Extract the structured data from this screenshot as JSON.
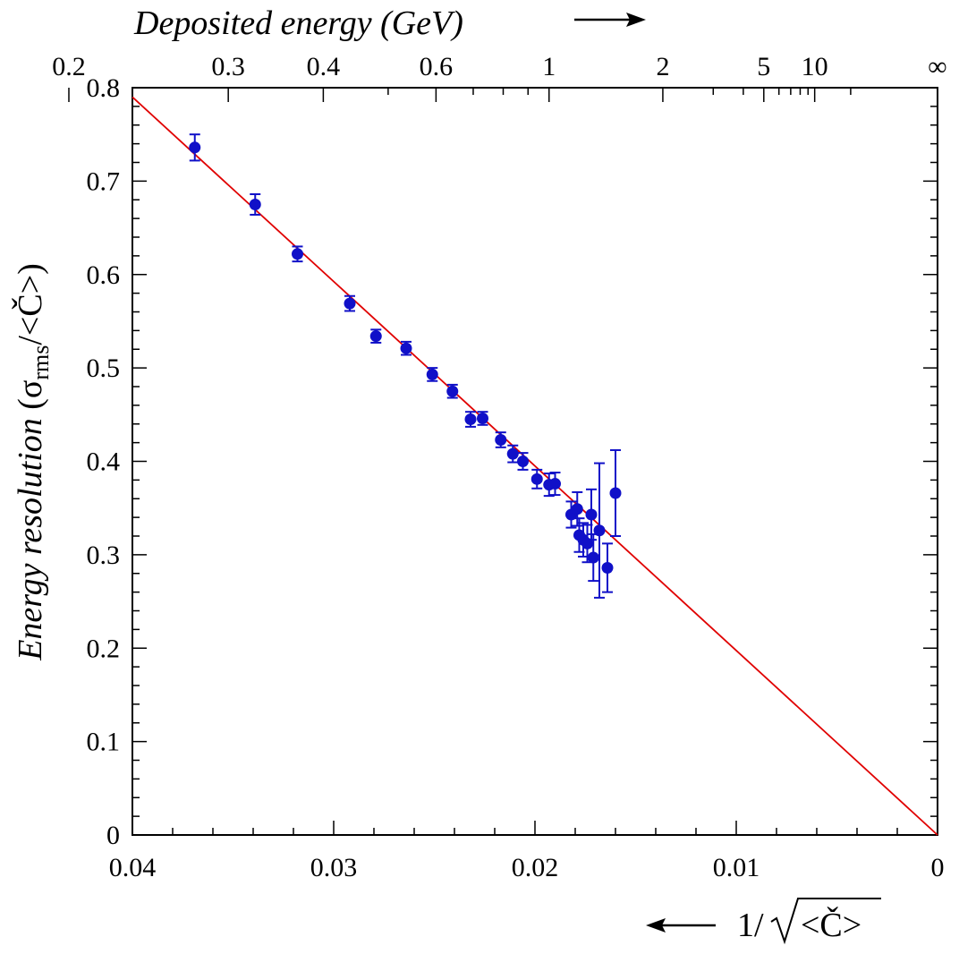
{
  "chart_data": {
    "type": "scatter",
    "xlabel": "1/√<Č>",
    "ylabel": "Energy resolution  (σrms/<Č>)",
    "ylabel_parts": {
      "italic": "Energy resolution",
      "sigma": "σ",
      "sub": "rms",
      "tail": "/<Č>)",
      "open": "("
    },
    "xlabel_parts": {
      "prefix": "1/",
      "radicand": "<Č>"
    },
    "top_axis_title": "Deposited energy (GeV)",
    "x_reversed": true,
    "xlim": [
      0.04,
      0
    ],
    "ylim": [
      0,
      0.8
    ],
    "x_ticks": [
      "0.04",
      "0.03",
      "0.02",
      "0.01",
      "0"
    ],
    "y_ticks": [
      "0",
      "0.1",
      "0.2",
      "0.3",
      "0.4",
      "0.5",
      "0.6",
      "0.7",
      "0.8"
    ],
    "top_ticks": [
      {
        "label": "0.2",
        "energy": 0.2
      },
      {
        "label": "0.3",
        "energy": 0.3
      },
      {
        "label": "0.4",
        "energy": 0.4
      },
      {
        "label": "0.6",
        "energy": 0.6
      },
      {
        "label": "1",
        "energy": 1
      },
      {
        "label": "2",
        "energy": 2
      },
      {
        "label": "5",
        "energy": 5
      },
      {
        "label": "10",
        "energy": 10
      },
      {
        "label": "∞",
        "energy": null
      }
    ],
    "grid": false,
    "series": [
      {
        "type": "scatter",
        "color": "#1010c8",
        "points": [
          {
            "x": 0.0369,
            "y": 0.736,
            "err": 0.014
          },
          {
            "x": 0.0339,
            "y": 0.675,
            "err": 0.011
          },
          {
            "x": 0.0318,
            "y": 0.622,
            "err": 0.008
          },
          {
            "x": 0.0292,
            "y": 0.569,
            "err": 0.008
          },
          {
            "x": 0.0279,
            "y": 0.534,
            "err": 0.007
          },
          {
            "x": 0.0264,
            "y": 0.521,
            "err": 0.007
          },
          {
            "x": 0.0251,
            "y": 0.493,
            "err": 0.007
          },
          {
            "x": 0.0241,
            "y": 0.475,
            "err": 0.007
          },
          {
            "x": 0.0232,
            "y": 0.445,
            "err": 0.008
          },
          {
            "x": 0.0226,
            "y": 0.446,
            "err": 0.007
          },
          {
            "x": 0.0217,
            "y": 0.423,
            "err": 0.008
          },
          {
            "x": 0.0211,
            "y": 0.408,
            "err": 0.009
          },
          {
            "x": 0.0206,
            "y": 0.4,
            "err": 0.009
          },
          {
            "x": 0.0199,
            "y": 0.381,
            "err": 0.01
          },
          {
            "x": 0.0193,
            "y": 0.375,
            "err": 0.012
          },
          {
            "x": 0.019,
            "y": 0.376,
            "err": 0.012
          },
          {
            "x": 0.0182,
            "y": 0.343,
            "err": 0.014
          },
          {
            "x": 0.0179,
            "y": 0.349,
            "err": 0.018
          },
          {
            "x": 0.0178,
            "y": 0.321,
            "err": 0.018
          },
          {
            "x": 0.0176,
            "y": 0.316,
            "err": 0.018
          },
          {
            "x": 0.0174,
            "y": 0.312,
            "err": 0.02
          },
          {
            "x": 0.0172,
            "y": 0.343,
            "err": 0.027
          },
          {
            "x": 0.0171,
            "y": 0.297,
            "err": 0.025
          },
          {
            "x": 0.0168,
            "y": 0.326,
            "err": 0.072
          },
          {
            "x": 0.0164,
            "y": 0.286,
            "err": 0.026
          },
          {
            "x": 0.016,
            "y": 0.366,
            "err": 0.046
          }
        ]
      },
      {
        "type": "line",
        "color": "#e00000",
        "x": [
          0.04,
          0
        ],
        "y": [
          0.79,
          0
        ]
      }
    ]
  }
}
